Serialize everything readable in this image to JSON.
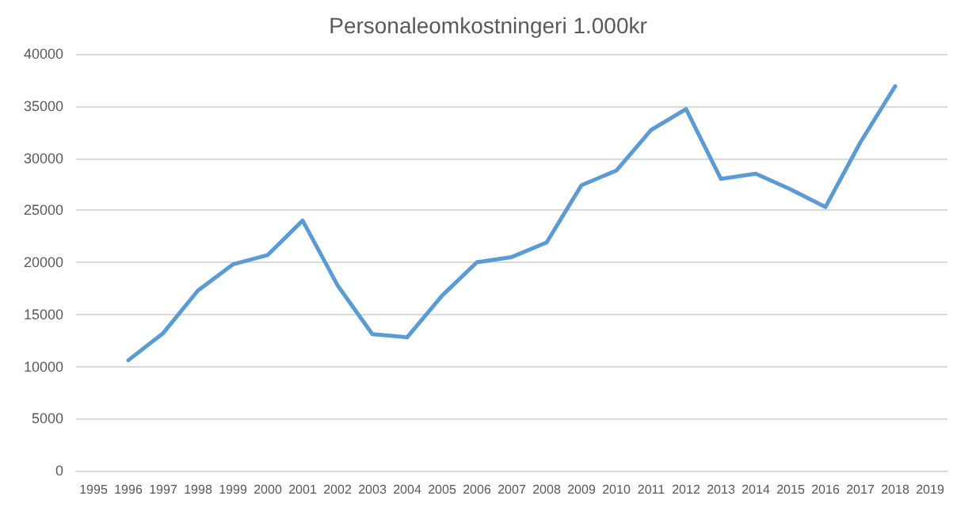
{
  "chart_data": {
    "type": "line",
    "title": "Personaleomkostningeri 1.000kr",
    "categories": [
      "1995",
      "1996",
      "1997",
      "1998",
      "1999",
      "2000",
      "2001",
      "2002",
      "2003",
      "2004",
      "2005",
      "2006",
      "2007",
      "2008",
      "2009",
      "2010",
      "2011",
      "2012",
      "2013",
      "2014",
      "2015",
      "2016",
      "2017",
      "2018",
      "2019"
    ],
    "series": [
      {
        "color": "#5b9bd5",
        "values": [
          null,
          10600,
          13200,
          17300,
          19800,
          20700,
          24000,
          17800,
          13100,
          12800,
          16800,
          20000,
          20500,
          21900,
          27400,
          28800,
          32700,
          34700,
          28000,
          28500,
          27000,
          25300,
          31500,
          36900,
          null
        ]
      }
    ],
    "ylim": [
      0,
      40000
    ],
    "yticks": [
      0,
      5000,
      10000,
      15000,
      20000,
      25000,
      30000,
      35000,
      40000
    ],
    "grid": "y",
    "marker": "none",
    "line_style": "solid"
  }
}
